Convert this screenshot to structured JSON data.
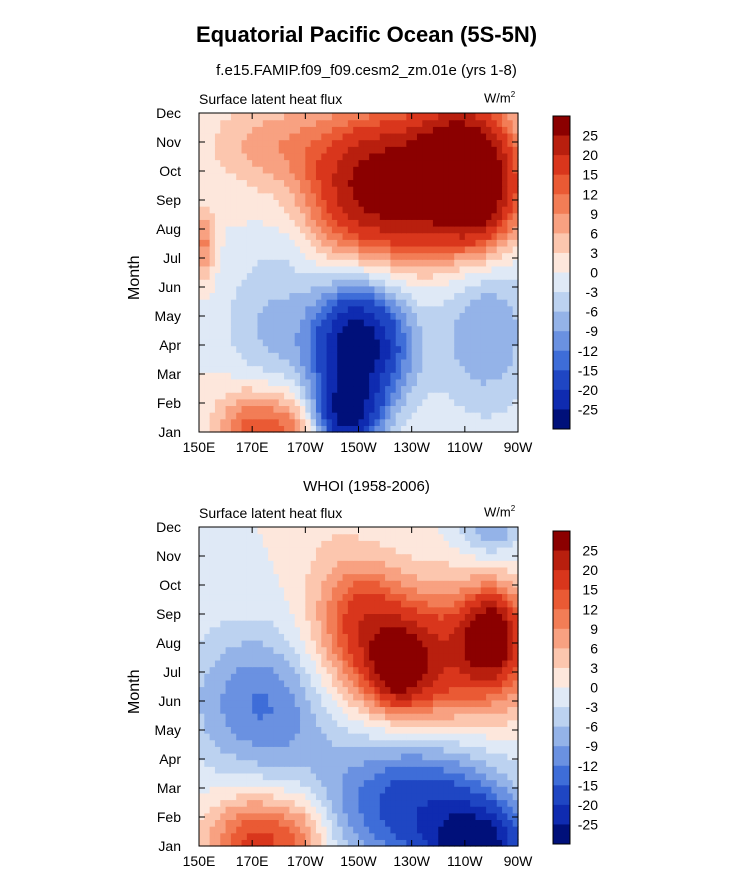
{
  "page": {
    "title": "Equatorial Pacific Ocean (5S-5N)"
  },
  "colorbar": {
    "levels": [
      "25",
      "20",
      "15",
      "12",
      "9",
      "6",
      "3",
      "0",
      "-3",
      "-6",
      "-9",
      "-12",
      "-15",
      "-20",
      "-25"
    ],
    "colors": [
      "#8b0000",
      "#b81f0e",
      "#d9361c",
      "#ea5a34",
      "#f27d56",
      "#f8a181",
      "#fcc6ae",
      "#fde7dc",
      "#dfe9f6",
      "#bcd2f0",
      "#94b3e8",
      "#6a91e1",
      "#3e6dd8",
      "#1f46c3",
      "#0f2bb0",
      "#00107a"
    ]
  },
  "chart_data": [
    {
      "type": "heatmap",
      "subtitle": "f.e15.FAMIP.f09_f09.cesm2_zm.01e (yrs 1-8)",
      "variable_label": "Surface latent heat flux",
      "units_base": "W/m",
      "units_exp": "2",
      "ylabel": "Month",
      "xlabel": "",
      "x_ticks": [
        "150E",
        "170E",
        "170W",
        "150W",
        "130W",
        "110W",
        "90W"
      ],
      "y_ticks": [
        "Jan",
        "Feb",
        "Mar",
        "Apr",
        "May",
        "Jun",
        "Jul",
        "Aug",
        "Sep",
        "Oct",
        "Nov",
        "Dec"
      ],
      "x_range_deg_east": [
        150,
        270
      ],
      "levels": [
        -25,
        -20,
        -15,
        -12,
        -9,
        -6,
        -3,
        0,
        3,
        6,
        9,
        12,
        15,
        20,
        25
      ],
      "features": [
        {
          "lon": 220,
          "month": 9.5,
          "value": 30,
          "rx": 30,
          "ry": 2.5
        },
        {
          "lon": 250,
          "month": 10.5,
          "value": 24,
          "rx": 18,
          "ry": 2.2
        },
        {
          "lon": 255,
          "month": 9,
          "value": 18,
          "rx": 15,
          "ry": 1.8
        },
        {
          "lon": 210,
          "month": 4,
          "value": -30,
          "rx": 18,
          "ry": 2.2
        },
        {
          "lon": 205,
          "month": 1.5,
          "value": -22,
          "rx": 12,
          "ry": 1.2
        },
        {
          "lon": 258,
          "month": 4.5,
          "value": -9,
          "rx": 18,
          "ry": 2.8
        },
        {
          "lon": 170,
          "month": 1,
          "value": 14,
          "rx": 14,
          "ry": 1.6
        },
        {
          "lon": 186,
          "month": 1,
          "value": 9,
          "rx": 12,
          "ry": 1.4
        },
        {
          "lon": 175,
          "month": 11,
          "value": 6,
          "rx": 22,
          "ry": 1.4
        },
        {
          "lon": 152,
          "month": 7.5,
          "value": 10,
          "rx": 4,
          "ry": 1.2
        },
        {
          "lon": 175,
          "month": 4.5,
          "value": -6,
          "rx": 16,
          "ry": 2.8
        },
        {
          "lon": 185,
          "month": 8,
          "value": -3,
          "rx": 12,
          "ry": 2.2
        }
      ]
    },
    {
      "type": "heatmap",
      "subtitle": "WHOI (1958-2006)",
      "variable_label": "Surface latent heat flux",
      "units_base": "W/m",
      "units_exp": "2",
      "ylabel": "Month",
      "xlabel": "",
      "x_ticks": [
        "150E",
        "170E",
        "170W",
        "150W",
        "130W",
        "110W",
        "90W"
      ],
      "y_ticks": [
        "Jan",
        "Feb",
        "Mar",
        "Apr",
        "May",
        "Jun",
        "Jul",
        "Aug",
        "Sep",
        "Oct",
        "Nov",
        "Dec"
      ],
      "x_range_deg_east": [
        150,
        270
      ],
      "levels": [
        -25,
        -20,
        -15,
        -12,
        -9,
        -6,
        -3,
        0,
        3,
        6,
        9,
        12,
        15,
        20,
        25
      ],
      "features": [
        {
          "lon": 237,
          "month": 7.5,
          "value": 20,
          "rx": 38,
          "ry": 2.4
        },
        {
          "lon": 260,
          "month": 8.3,
          "value": 24,
          "rx": 10,
          "ry": 1.4
        },
        {
          "lon": 225,
          "month": 7.2,
          "value": 20,
          "rx": 10,
          "ry": 1.2
        },
        {
          "lon": 213,
          "month": 9,
          "value": 10,
          "rx": 14,
          "ry": 1.8
        },
        {
          "lon": 232,
          "month": 2.5,
          "value": -18,
          "rx": 34,
          "ry": 2.4
        },
        {
          "lon": 255,
          "month": 1,
          "value": -24,
          "rx": 18,
          "ry": 1.4
        },
        {
          "lon": 175,
          "month": 6,
          "value": -13,
          "rx": 28,
          "ry": 2.6
        },
        {
          "lon": 172,
          "month": 1.2,
          "value": 17,
          "rx": 18,
          "ry": 1.6
        },
        {
          "lon": 190,
          "month": 1.5,
          "value": 6,
          "rx": 10,
          "ry": 1.4
        },
        {
          "lon": 200,
          "month": 10,
          "value": 3,
          "rx": 14,
          "ry": 3
        },
        {
          "lon": 260,
          "month": 12,
          "value": -9,
          "rx": 12,
          "ry": 1
        }
      ]
    }
  ]
}
